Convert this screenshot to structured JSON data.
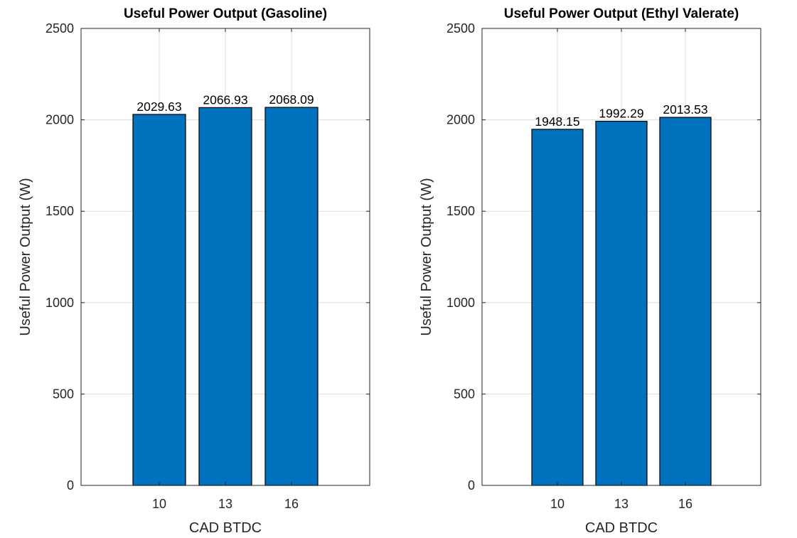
{
  "chart_data": [
    {
      "type": "bar",
      "title": "Useful Power Output (Gasoline)",
      "xlabel": "CAD BTDC",
      "ylabel": "Useful Power Output (W)",
      "categories": [
        "10",
        "13",
        "16"
      ],
      "values": [
        2029.63,
        2066.93,
        2068.09
      ],
      "data_labels": [
        "2029.63",
        "2066.93",
        "2068.09"
      ],
      "ylim": [
        0,
        2500
      ],
      "yticks": [
        0,
        500,
        1000,
        1500,
        2000,
        2500
      ],
      "grid": true,
      "bar_color": "#0072BD"
    },
    {
      "type": "bar",
      "title": "Useful Power Output (Ethyl Valerate)",
      "xlabel": "CAD BTDC",
      "ylabel": "Useful Power Output (W)",
      "categories": [
        "10",
        "13",
        "16"
      ],
      "values": [
        1948.15,
        1992.29,
        2013.53
      ],
      "data_labels": [
        "1948.15",
        "1992.29",
        "2013.53"
      ],
      "ylim": [
        0,
        2500
      ],
      "yticks": [
        0,
        500,
        1000,
        1500,
        2000,
        2500
      ],
      "grid": true,
      "bar_color": "#0072BD"
    }
  ]
}
